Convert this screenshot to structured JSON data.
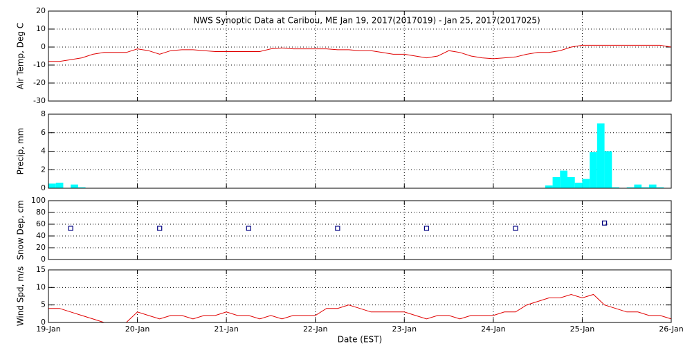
{
  "chart_data": [
    {
      "type": "line",
      "title": "NWS Synoptic Data at Caribou, ME   Jan 19, 2017(2017019) - Jan 25, 2017(2017025)",
      "ylabel": "Air Temp, Deg C",
      "ylim": [
        -30,
        20
      ],
      "yticks": [
        -30,
        -20,
        -10,
        0,
        10,
        20
      ],
      "grid": true,
      "color": "#e00000",
      "values": [
        -8,
        -8,
        -7,
        -6,
        -4,
        -3,
        -3,
        -3,
        -1,
        -2,
        -4,
        -2,
        -1.5,
        -1.5,
        -2,
        -2.5,
        -2.5,
        -2.5,
        -2.5,
        -2.5,
        -1,
        -0.5,
        -1,
        -1,
        -1,
        -1,
        -1.5,
        -1.5,
        -2,
        -2,
        -3,
        -4,
        -4,
        -5,
        -6,
        -5,
        -2,
        -3,
        -5,
        -6,
        -6.5,
        -6,
        -5.5,
        -4,
        -3,
        -3,
        -2,
        0,
        1,
        1,
        1,
        1,
        1,
        1,
        1,
        1,
        0
      ]
    },
    {
      "type": "bar",
      "ylabel": "Precip, mm",
      "ylim": [
        0,
        8
      ],
      "yticks": [
        0,
        2,
        4,
        6,
        8
      ],
      "grid": true,
      "color": "#00ffff",
      "values": [
        0.5,
        0.6,
        0,
        0.4,
        0.1,
        0,
        0,
        0,
        0,
        0,
        0,
        0,
        0,
        0,
        0,
        0,
        0,
        0,
        0,
        0,
        0,
        0,
        0,
        0,
        0,
        0,
        0,
        0,
        0,
        0,
        0,
        0,
        0,
        0,
        0,
        0,
        0,
        0,
        0,
        0,
        0,
        0,
        0,
        0,
        0,
        0,
        0,
        0,
        0,
        0,
        0,
        0,
        0,
        0,
        0,
        0,
        0,
        0,
        0,
        0,
        0,
        0,
        0,
        0,
        0,
        0,
        0,
        0.3,
        1.2,
        1.9,
        1.2,
        0.6,
        1.0,
        3.9,
        7.0,
        4.0,
        0.1,
        0,
        0.1,
        0.4,
        0.1,
        0.4,
        0.1,
        0
      ]
    },
    {
      "type": "scatter",
      "ylabel": "Snow Dep, cm",
      "ylim": [
        0,
        100
      ],
      "yticks": [
        0,
        20,
        40,
        60,
        80,
        100
      ],
      "grid": true,
      "color": "#000080",
      "values": [
        null,
        53,
        null,
        null,
        null,
        53,
        null,
        null,
        null,
        53,
        null,
        null,
        null,
        53,
        null,
        null,
        null,
        53,
        null,
        null,
        null,
        53,
        null,
        null,
        null,
        62,
        null,
        null,
        null
      ]
    },
    {
      "type": "line",
      "ylabel": "Wind Spd, m/s",
      "ylim": [
        0,
        15
      ],
      "yticks": [
        0,
        5,
        10,
        15
      ],
      "grid": true,
      "color": "#e00000",
      "xlabel": "Date (EST)",
      "xticks": [
        "19-Jan",
        "20-Jan",
        "21-Jan",
        "22-Jan",
        "23-Jan",
        "24-Jan",
        "25-Jan",
        "26-Jan"
      ],
      "values": [
        4,
        4,
        3,
        2,
        1,
        0,
        0,
        0,
        3,
        2,
        1,
        2,
        2,
        1,
        2,
        2,
        3,
        2,
        2,
        1,
        2,
        1,
        2,
        2,
        2,
        4,
        4,
        5,
        4,
        3,
        3,
        3,
        3,
        2,
        1,
        2,
        2,
        1,
        2,
        2,
        2,
        3,
        3,
        5,
        6,
        7,
        7,
        8,
        7,
        8,
        5,
        4,
        3,
        3,
        2,
        2,
        1
      ]
    }
  ]
}
